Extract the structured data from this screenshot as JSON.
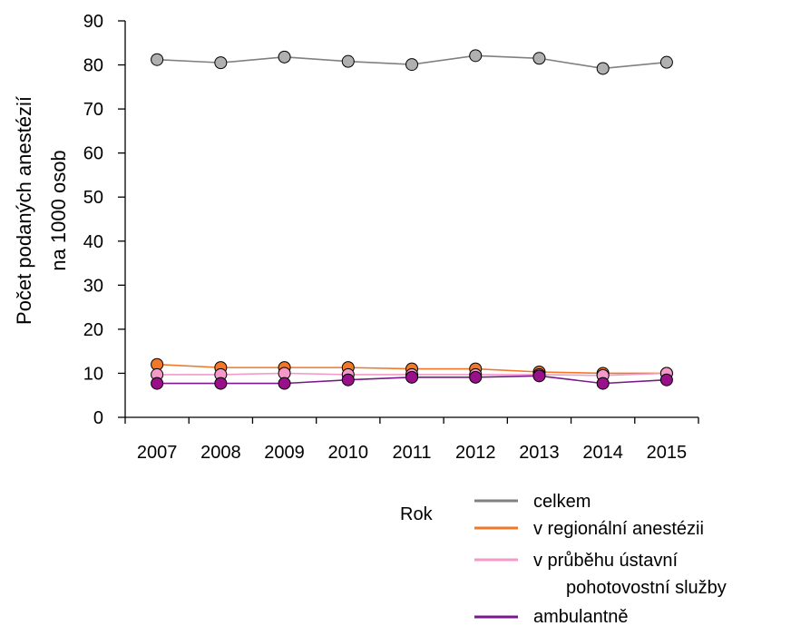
{
  "chart_data": {
    "type": "line",
    "title": "",
    "xlabel": "Rok",
    "ylabel_lines": [
      "Počet podaných anestézií",
      "na 1000 osob"
    ],
    "categories": [
      "2007",
      "2008",
      "2009",
      "2010",
      "2011",
      "2012",
      "2013",
      "2014",
      "2015"
    ],
    "ylim": [
      0,
      90
    ],
    "yticks": [
      "0",
      "10",
      "20",
      "30",
      "40",
      "50",
      "60",
      "70",
      "80",
      "90"
    ],
    "grid": false,
    "legend_position": "bottom-right",
    "series": [
      {
        "name": "celkem",
        "color": "#808080",
        "marker_color": "#b0b0b0",
        "values": [
          81.2,
          80.5,
          81.8,
          80.8,
          80.1,
          82.1,
          81.5,
          79.2,
          80.6
        ]
      },
      {
        "name": "v regionální anestézii",
        "color": "#f07828",
        "marker_color": "#f07828",
        "values": [
          12.0,
          11.3,
          11.3,
          11.3,
          11.0,
          11.0,
          10.3,
          10.0,
          10.0
        ]
      },
      {
        "name_lines": [
          "v průběhu ústavní",
          "pohotovostní služby"
        ],
        "color": "#f49ac8",
        "marker_color": "#f49ac8",
        "values": [
          9.7,
          9.7,
          10.0,
          9.7,
          9.7,
          9.7,
          9.7,
          9.5,
          10.0
        ]
      },
      {
        "name": "ambulantně",
        "color": "#7a1a8a",
        "marker_color": "#9a0f8a",
        "values": [
          7.7,
          7.7,
          7.7,
          8.5,
          9.1,
          9.1,
          9.4,
          7.7,
          8.5
        ]
      }
    ]
  }
}
